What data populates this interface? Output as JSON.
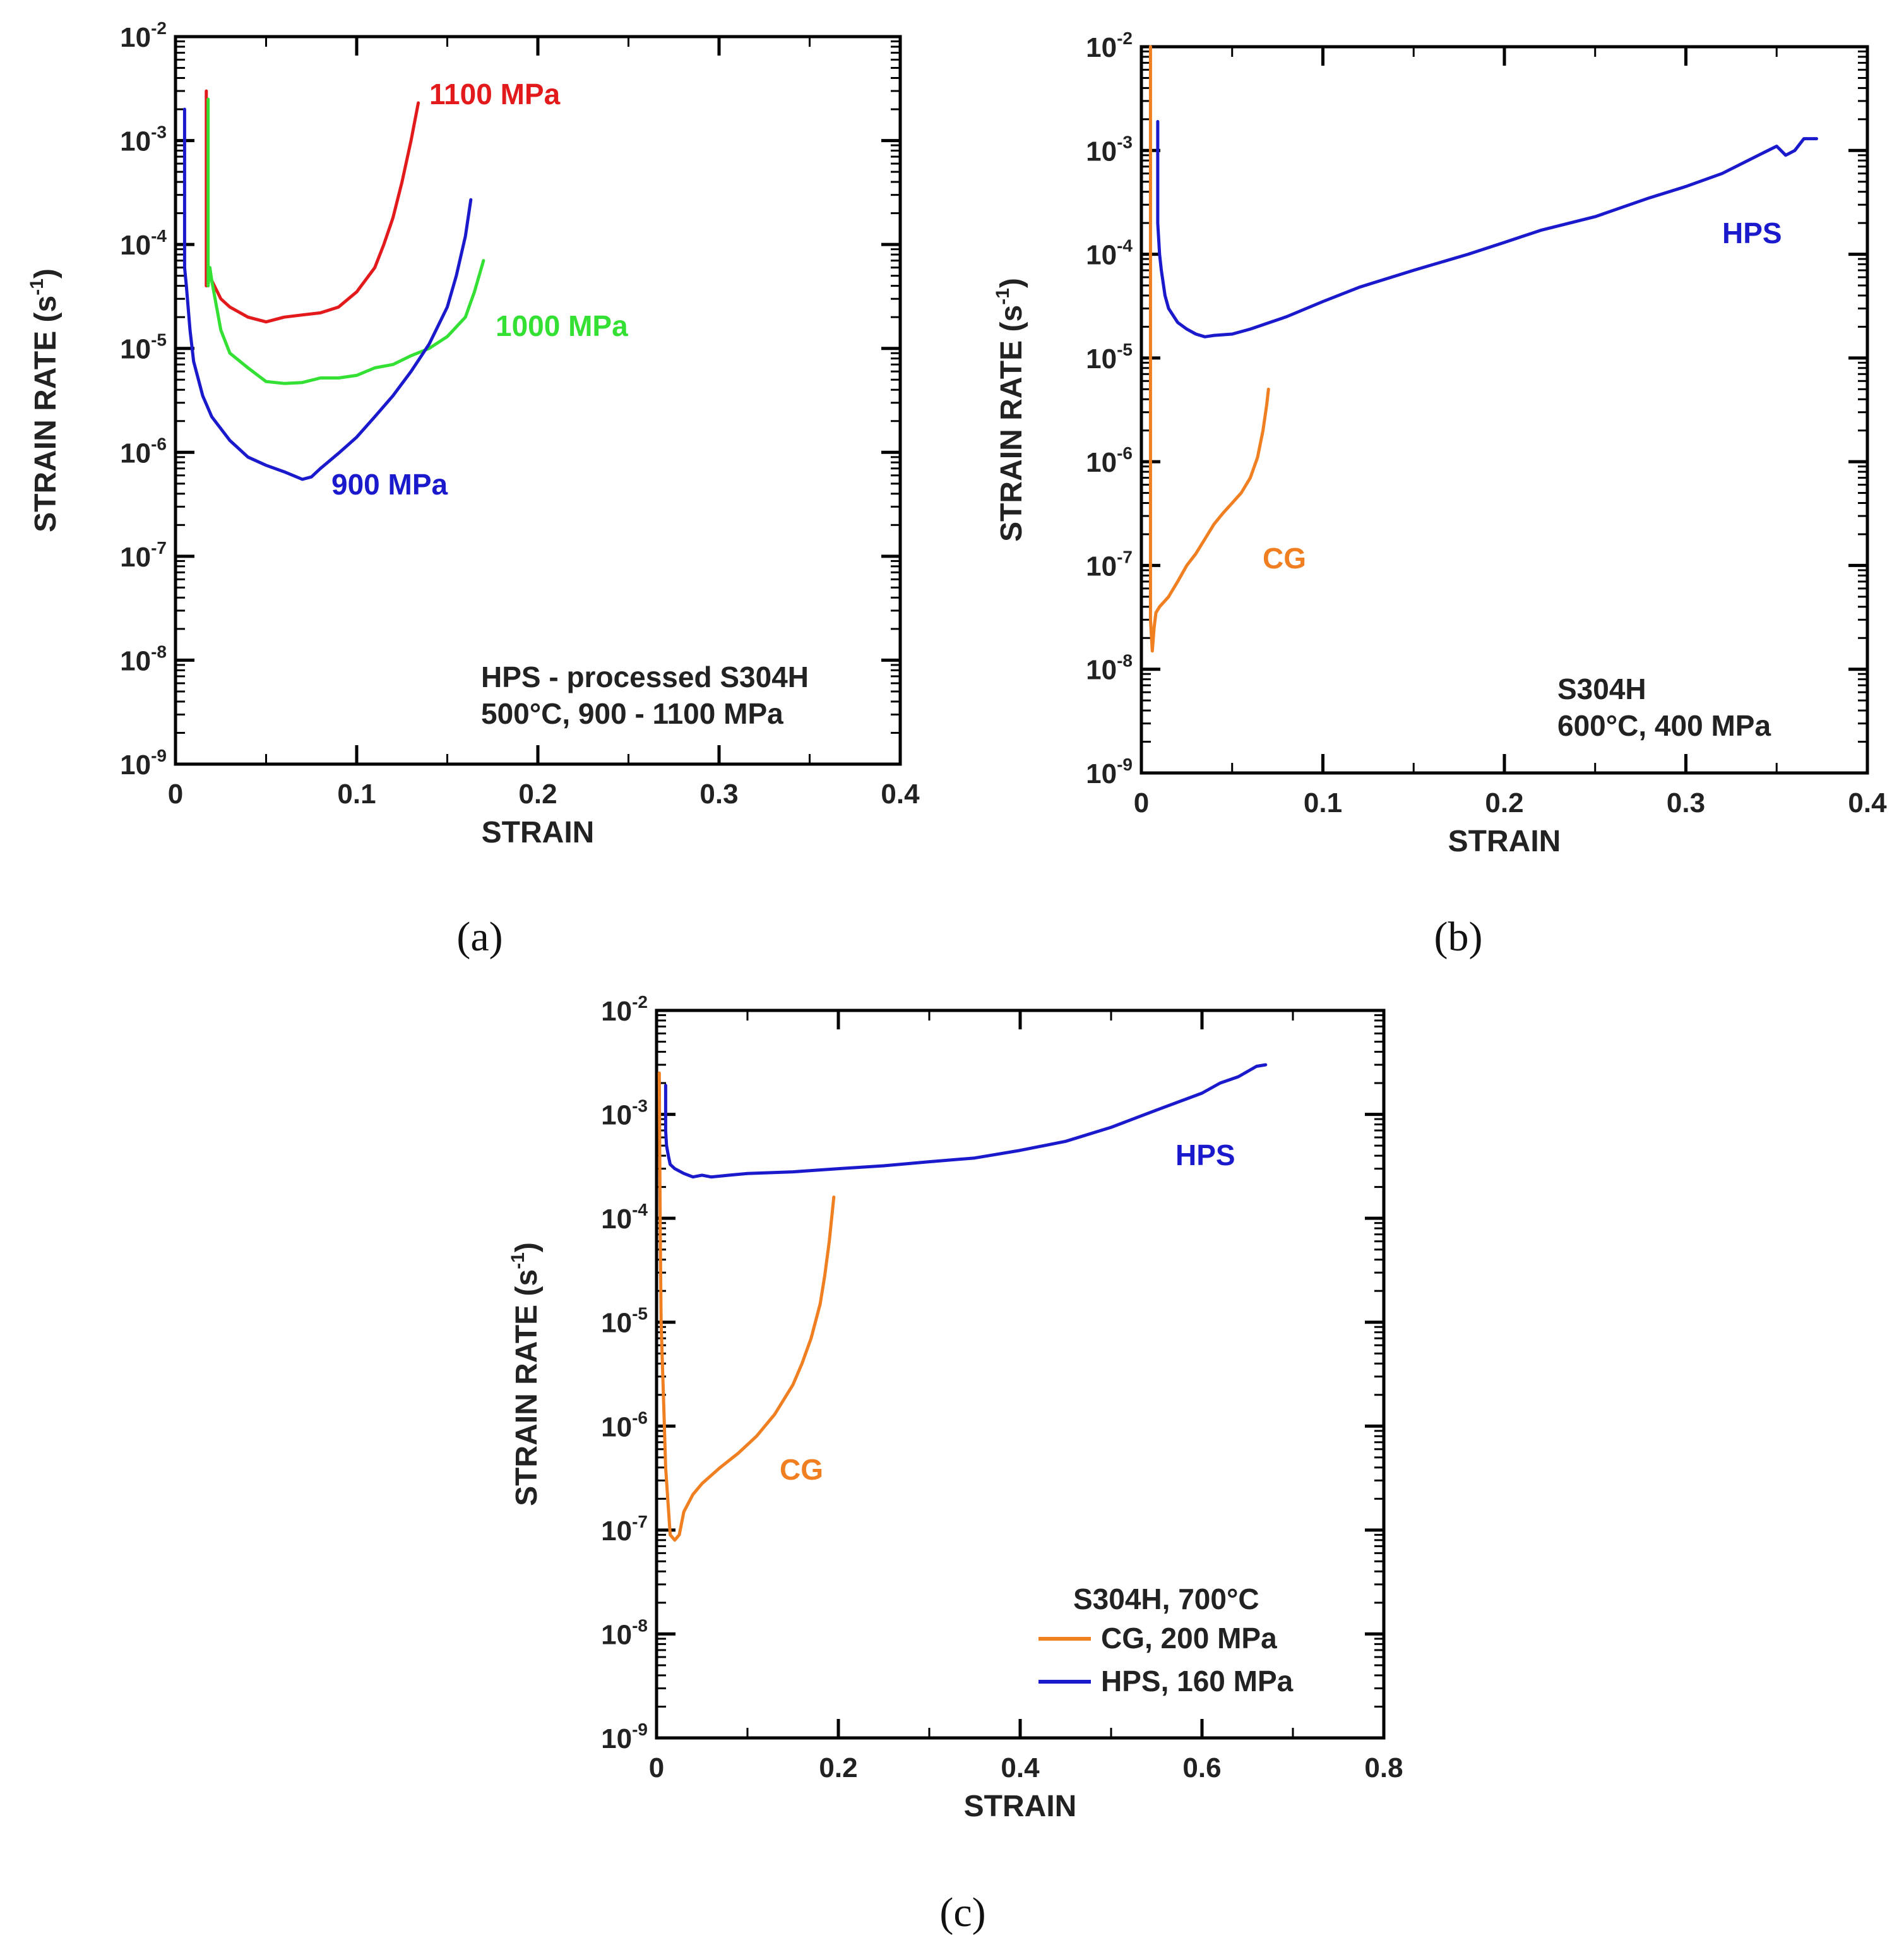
{
  "chart_data": [
    {
      "id": "a",
      "type": "line",
      "caption": "(a)",
      "xlabel": "STRAIN",
      "ylabel_main": "STRAIN RATE (s",
      "ylabel_sup": "-1",
      "ylabel_close": ")",
      "xlim": [
        0,
        0.4
      ],
      "ylim": [
        1e-09,
        0.01
      ],
      "yscale": "log",
      "x_ticks": [
        "0",
        "0.1",
        "0.2",
        "0.3",
        "0.4"
      ],
      "y_tick_base": "10",
      "y_tick_exponents": [
        "-9",
        "-8",
        "-7",
        "-6",
        "-5",
        "-4",
        "-3",
        "-2"
      ],
      "annotation_lines": [
        "HPS - processed S304H",
        "500°C, 900 - 1100 MPa"
      ],
      "series": [
        {
          "label": "1100 MPa",
          "color": "#e31a1c",
          "x": [
            0.017,
            0.017,
            0.018,
            0.02,
            0.025,
            0.03,
            0.04,
            0.05,
            0.06,
            0.07,
            0.08,
            0.09,
            0.1,
            0.11,
            0.115,
            0.12,
            0.125,
            0.13,
            0.134
          ],
          "y": [
            0.003,
            4e-05,
            6e-05,
            4.5e-05,
            3e-05,
            2.5e-05,
            2e-05,
            1.8e-05,
            2e-05,
            2.1e-05,
            2.2e-05,
            2.5e-05,
            3.5e-05,
            6e-05,
            0.0001,
            0.00018,
            0.0004,
            0.001,
            0.0023
          ]
        },
        {
          "label": "1000 MPa",
          "color": "#33e033",
          "x": [
            0.018,
            0.018,
            0.019,
            0.02,
            0.025,
            0.03,
            0.04,
            0.05,
            0.06,
            0.07,
            0.08,
            0.09,
            0.1,
            0.11,
            0.12,
            0.13,
            0.14,
            0.15,
            0.16,
            0.165,
            0.17
          ],
          "y": [
            0.0025,
            4e-05,
            6e-05,
            4.5e-05,
            1.5e-05,
            9e-06,
            6.5e-06,
            4.8e-06,
            4.6e-06,
            4.7e-06,
            5.2e-06,
            5.2e-06,
            5.5e-06,
            6.5e-06,
            7e-06,
            8.5e-06,
            1e-05,
            1.3e-05,
            2e-05,
            3.5e-05,
            7e-05
          ]
        },
        {
          "label": "900 MPa",
          "color": "#1a1acc",
          "x": [
            0.005,
            0.005,
            0.006,
            0.008,
            0.01,
            0.015,
            0.02,
            0.03,
            0.04,
            0.05,
            0.06,
            0.07,
            0.075,
            0.08,
            0.09,
            0.1,
            0.11,
            0.12,
            0.13,
            0.14,
            0.15,
            0.155,
            0.16,
            0.163
          ],
          "y": [
            0.002,
            6e-05,
            4e-05,
            1.5e-05,
            7.5e-06,
            3.5e-06,
            2.2e-06,
            1.3e-06,
            9e-07,
            7.5e-07,
            6.5e-07,
            5.5e-07,
            5.8e-07,
            7e-07,
            9.8e-07,
            1.4e-06,
            2.2e-06,
            3.5e-06,
            6e-06,
            1.1e-05,
            2.5e-05,
            5e-05,
            0.00012,
            0.00027
          ]
        }
      ]
    },
    {
      "id": "b",
      "type": "line",
      "caption": "(b)",
      "xlabel": "STRAIN",
      "ylabel_main": "STRAIN RATE (s",
      "ylabel_sup": "-1",
      "ylabel_close": ")",
      "xlim": [
        0,
        0.4
      ],
      "ylim": [
        1e-09,
        0.01
      ],
      "yscale": "log",
      "x_ticks": [
        "0",
        "0.1",
        "0.2",
        "0.3",
        "0.4"
      ],
      "y_tick_base": "10",
      "y_tick_exponents": [
        "-9",
        "-8",
        "-7",
        "-6",
        "-5",
        "-4",
        "-3",
        "-2"
      ],
      "annotation_lines": [
        "S304H",
        "600°C, 400 MPa"
      ],
      "series": [
        {
          "label": "HPS",
          "color": "#1a1acc",
          "x": [
            0.009,
            0.009,
            0.01,
            0.011,
            0.013,
            0.015,
            0.02,
            0.025,
            0.03,
            0.035,
            0.04,
            0.05,
            0.06,
            0.08,
            0.1,
            0.12,
            0.15,
            0.18,
            0.2,
            0.22,
            0.25,
            0.28,
            0.3,
            0.32,
            0.34,
            0.35,
            0.355,
            0.36,
            0.365,
            0.372
          ],
          "y": [
            0.0019,
            0.0002,
            0.0001,
            7e-05,
            4e-05,
            3e-05,
            2.2e-05,
            1.9e-05,
            1.7e-05,
            1.6e-05,
            1.65e-05,
            1.7e-05,
            1.9e-05,
            2.5e-05,
            3.5e-05,
            4.8e-05,
            7e-05,
            0.0001,
            0.00013,
            0.00017,
            0.00023,
            0.00035,
            0.00045,
            0.0006,
            0.0009,
            0.0011,
            0.0009,
            0.001,
            0.0013,
            0.0013
          ]
        },
        {
          "label": "CG",
          "color": "#f07f22",
          "x": [
            0.005,
            0.005,
            0.006,
            0.007,
            0.008,
            0.01,
            0.015,
            0.02,
            0.025,
            0.03,
            0.035,
            0.04,
            0.045,
            0.05,
            0.055,
            0.06,
            0.064,
            0.067,
            0.069,
            0.07
          ],
          "y": [
            0.016,
            3e-08,
            1.5e-08,
            2.5e-08,
            3.5e-08,
            4e-08,
            5e-08,
            7e-08,
            1e-07,
            1.3e-07,
            1.8e-07,
            2.5e-07,
            3.2e-07,
            4e-07,
            5e-07,
            7e-07,
            1.1e-06,
            2e-06,
            3.5e-06,
            5e-06
          ]
        }
      ]
    },
    {
      "id": "c",
      "type": "line",
      "caption": "(c)",
      "xlabel": "STRAIN",
      "ylabel_main": "STRAIN RATE (s",
      "ylabel_sup": "-1",
      "ylabel_close": ")",
      "xlim": [
        0,
        0.8
      ],
      "ylim": [
        1e-09,
        0.01
      ],
      "yscale": "log",
      "x_ticks": [
        "0",
        "0.2",
        "0.4",
        "0.6",
        "0.8"
      ],
      "y_tick_base": "10",
      "y_tick_exponents": [
        "-9",
        "-8",
        "-7",
        "-6",
        "-5",
        "-4",
        "-3",
        "-2"
      ],
      "legend": {
        "title": "S304H, 700°C",
        "placement": "bottom-right",
        "entries": [
          "CG, 200 MPa",
          "HPS, 160 MPa"
        ]
      },
      "series": [
        {
          "label": "HPS",
          "color": "#1a1acc",
          "x": [
            0.01,
            0.01,
            0.011,
            0.013,
            0.015,
            0.02,
            0.03,
            0.04,
            0.05,
            0.06,
            0.08,
            0.1,
            0.15,
            0.2,
            0.25,
            0.3,
            0.35,
            0.4,
            0.45,
            0.5,
            0.55,
            0.6,
            0.62,
            0.64,
            0.66,
            0.67
          ],
          "y": [
            0.0019,
            0.0007,
            0.0005,
            0.0004,
            0.00033,
            0.0003,
            0.00027,
            0.00025,
            0.00026,
            0.00025,
            0.00026,
            0.00027,
            0.00028,
            0.0003,
            0.00032,
            0.00035,
            0.00038,
            0.00045,
            0.00055,
            0.00075,
            0.0011,
            0.0016,
            0.002,
            0.0023,
            0.0029,
            0.003
          ]
        },
        {
          "label": "CG",
          "color": "#f07f22",
          "x": [
            0.003,
            0.004,
            0.005,
            0.008,
            0.01,
            0.015,
            0.02,
            0.025,
            0.03,
            0.04,
            0.05,
            0.07,
            0.09,
            0.11,
            0.13,
            0.15,
            0.16,
            0.17,
            0.18,
            0.185,
            0.19,
            0.195
          ],
          "y": [
            0.0025,
            8e-05,
            1e-05,
            1.5e-06,
            4e-07,
            9e-08,
            8e-08,
            9e-08,
            1.5e-07,
            2.2e-07,
            2.8e-07,
            4e-07,
            5.5e-07,
            8e-07,
            1.3e-06,
            2.5e-06,
            4e-06,
            7e-06,
            1.5e-05,
            2.8e-05,
            6e-05,
            0.00016
          ]
        }
      ]
    }
  ]
}
